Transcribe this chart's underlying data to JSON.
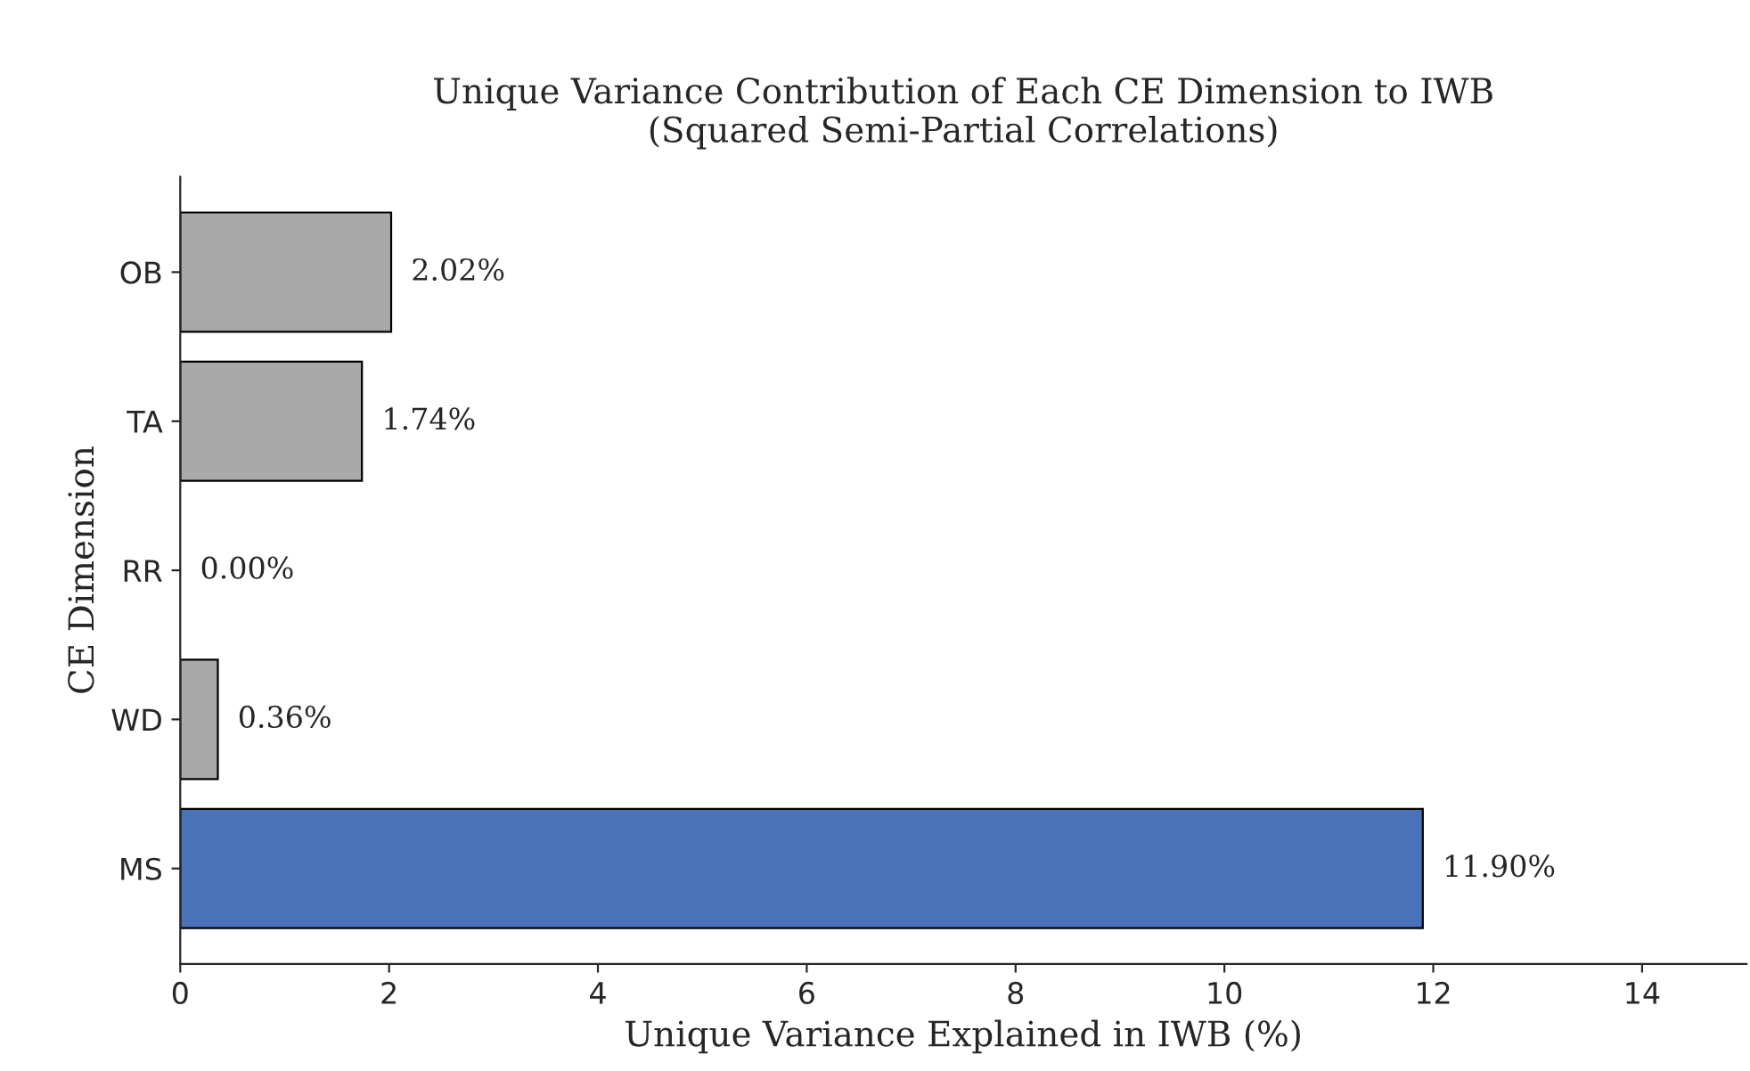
{
  "chart_data": {
    "type": "bar",
    "orientation": "horizontal",
    "title": "Unique Variance Contribution of Each CE Dimension to IWB\n(Squared Semi-Partial Correlations)",
    "xlabel": "Unique Variance Explained in IWB (%)",
    "ylabel": "CE Dimension",
    "categories": [
      "OB",
      "TA",
      "RR",
      "WD",
      "MS"
    ],
    "values": [
      2.02,
      1.74,
      0.0,
      0.36,
      11.9
    ],
    "colors": [
      "#a9a9a9",
      "#a9a9a9",
      "#a9a9a9",
      "#a9a9a9",
      "#4a72b8"
    ],
    "value_labels": [
      "2.02%",
      "1.74%",
      "0.00%",
      "0.36%",
      "11.90%"
    ],
    "xlim": [
      0,
      15
    ],
    "xticks": [
      0,
      2,
      4,
      6,
      8,
      10,
      12,
      14
    ],
    "grid": false,
    "legend": false
  }
}
